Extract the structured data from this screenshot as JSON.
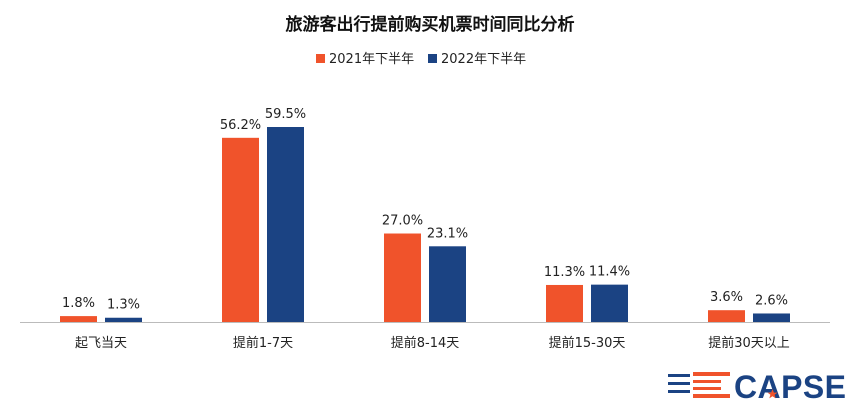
{
  "chart_data": {
    "type": "bar",
    "title": "旅游客出行提前购买机票时间同比分析",
    "categories": [
      "起飞当天",
      "提前1-7天",
      "提前8-14天",
      "提前15-30天",
      "提前30天以上"
    ],
    "series": [
      {
        "name": "2021年下半年",
        "color": "#F0532B",
        "values": [
          1.8,
          56.2,
          27.0,
          11.3,
          3.6
        ]
      },
      {
        "name": "2022年下半年",
        "color": "#1B4383",
        "values": [
          1.3,
          59.5,
          23.1,
          11.4,
          2.6
        ]
      }
    ],
    "unit": "%",
    "xlabel": "",
    "ylabel": "",
    "ylim": [
      0,
      65
    ],
    "grid": false,
    "legend_position": "top-center"
  },
  "logo": {
    "text": "CAPSE",
    "colors": {
      "blue": "#1B4383",
      "orange": "#F0532B"
    }
  }
}
